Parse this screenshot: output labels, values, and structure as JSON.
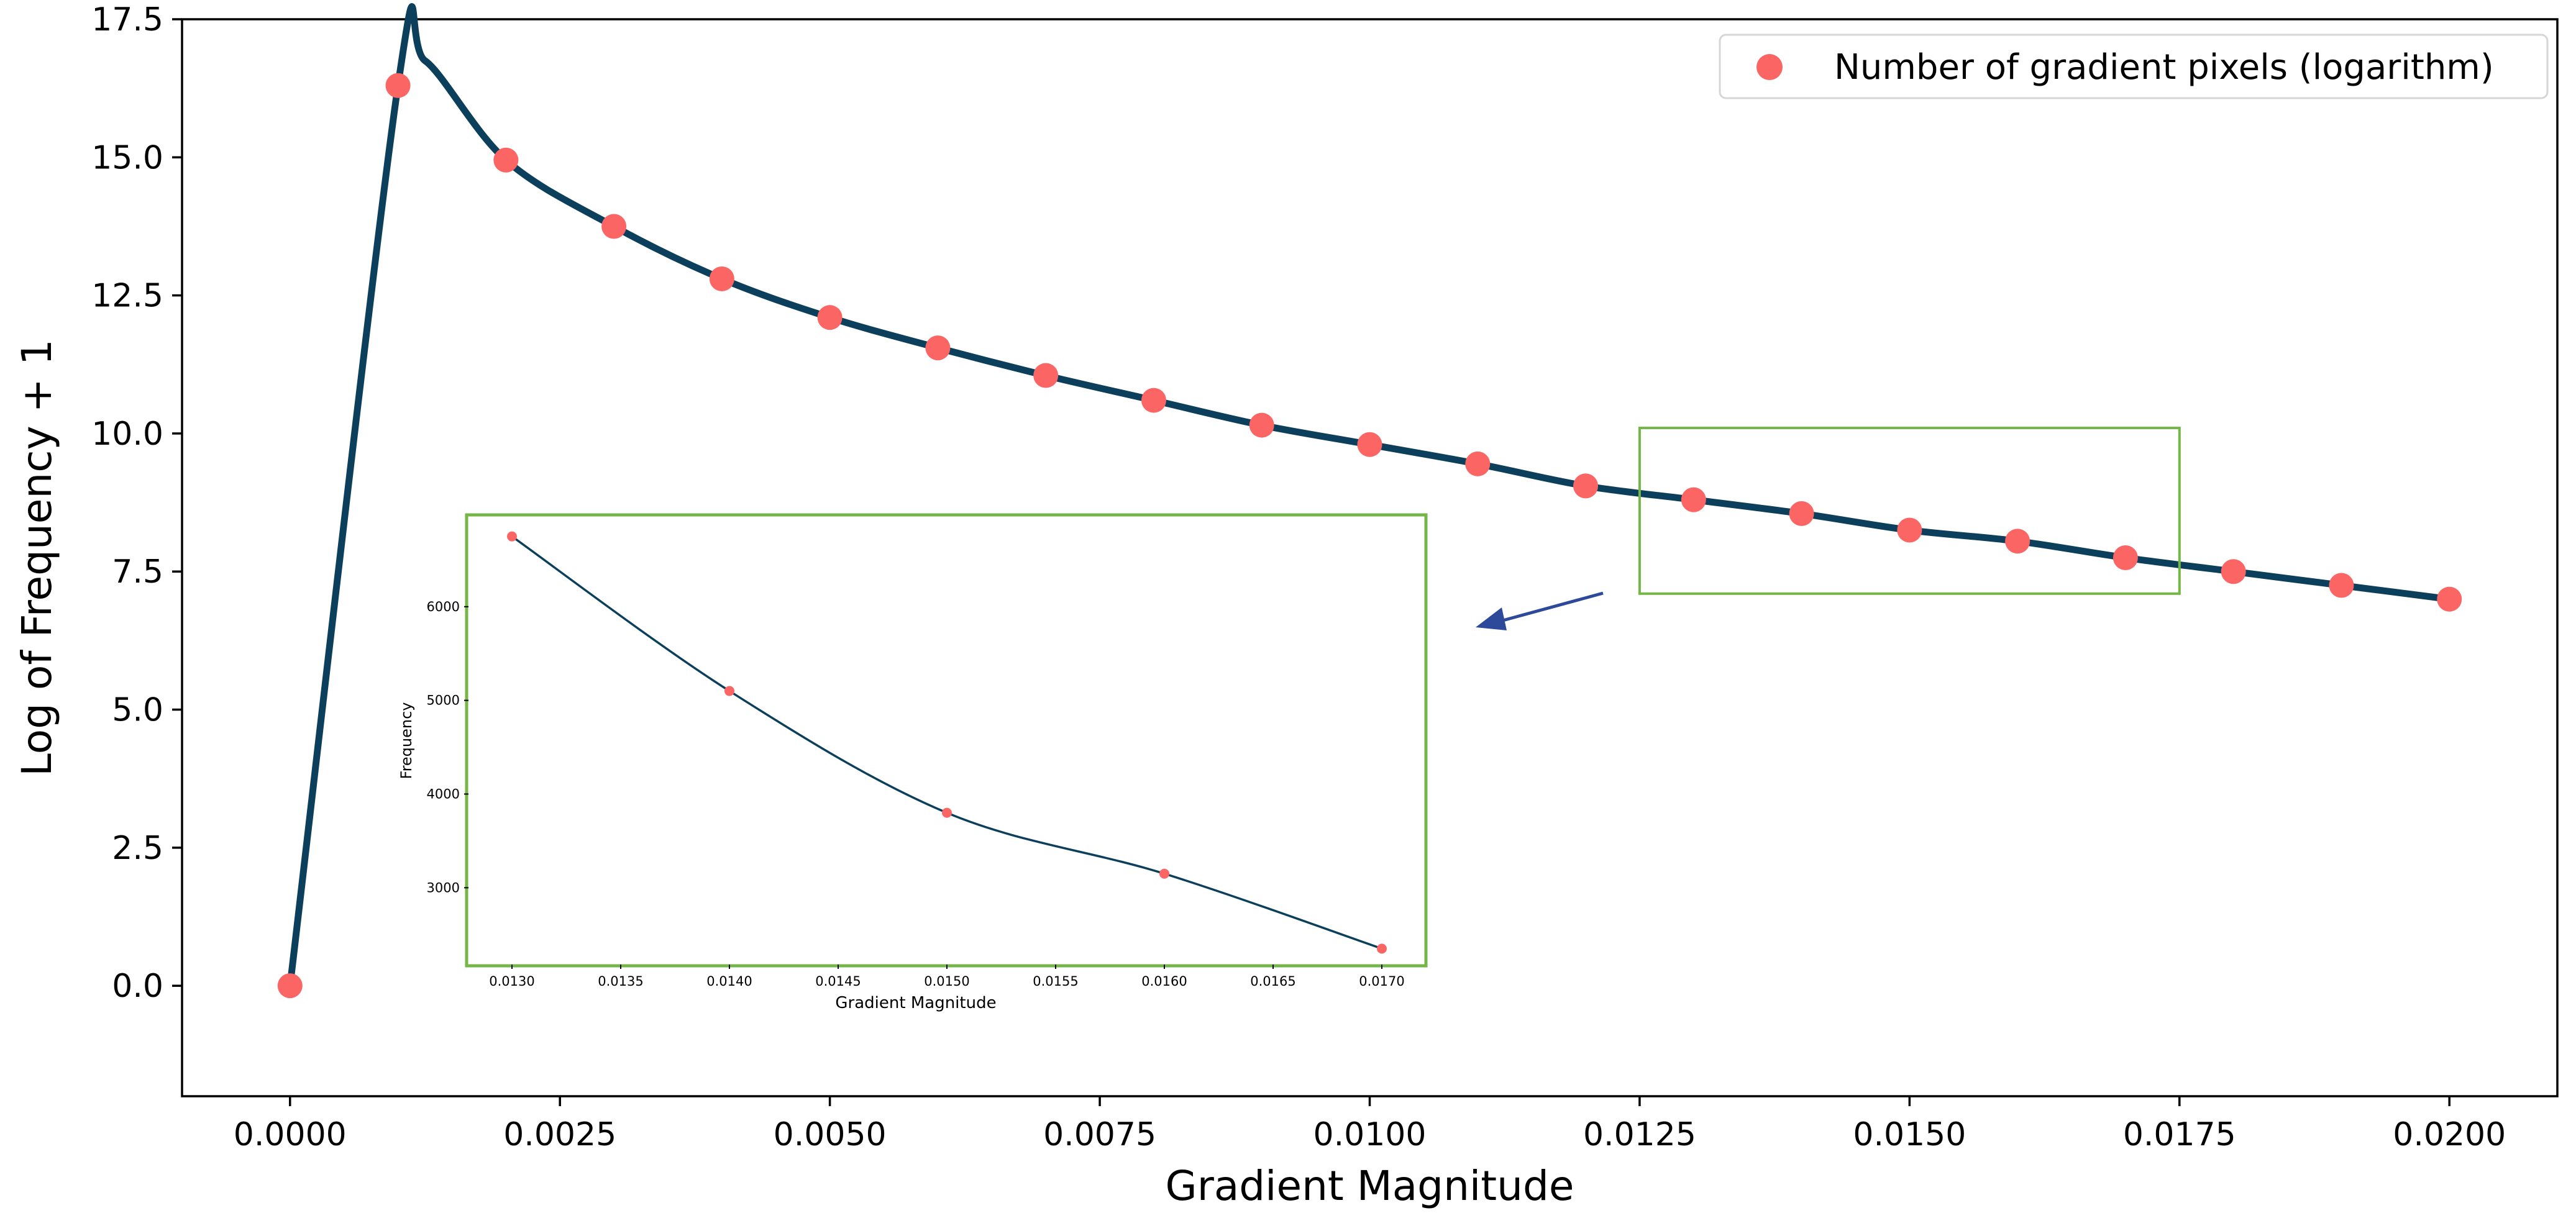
{
  "colors": {
    "line": "#0b3f5c",
    "marker": "#fb6664",
    "zoom_box": "#74b648",
    "arrow": "#2d4a9a",
    "axis": "#000000"
  },
  "chart_data": [
    {
      "type": "line",
      "role": "main",
      "xlabel": "Gradient Magnitude",
      "ylabel": "Log of Frequency + 1",
      "xlim": [
        -0.001,
        0.021
      ],
      "ylim": [
        -2.0,
        17.5
      ],
      "x_ticks": [
        0.0,
        0.0025,
        0.005,
        0.0075,
        0.01,
        0.0125,
        0.015,
        0.0175,
        0.02
      ],
      "x_tick_labels": [
        "0.0000",
        "0.0025",
        "0.0050",
        "0.0075",
        "0.0100",
        "0.0125",
        "0.0150",
        "0.0175",
        "0.0200"
      ],
      "y_ticks": [
        0.0,
        2.5,
        5.0,
        7.5,
        10.0,
        12.5,
        15.0,
        17.5
      ],
      "y_tick_labels": [
        "0.0",
        "2.5",
        "5.0",
        "7.5",
        "10.0",
        "12.5",
        "15.0",
        "17.5"
      ],
      "grid": false,
      "legend_position": "top-right",
      "series": [
        {
          "name": "Number of gradient pixels (logarithm)",
          "x": [
            0.0,
            0.001,
            0.002,
            0.003,
            0.004,
            0.005,
            0.006,
            0.007,
            0.008,
            0.009,
            0.01,
            0.011,
            0.012,
            0.013,
            0.014,
            0.015,
            0.016,
            0.017,
            0.018,
            0.019,
            0.02
          ],
          "y": [
            0.0,
            16.3,
            14.95,
            13.75,
            12.8,
            12.1,
            11.55,
            11.05,
            10.6,
            10.15,
            9.8,
            9.45,
            9.05,
            8.8,
            8.55,
            8.25,
            8.05,
            7.75,
            7.5,
            7.25,
            7.0
          ]
        }
      ],
      "curve_peak": {
        "x": 0.00125,
        "y": 16.75
      },
      "zoom_region": {
        "x": [
          0.0125,
          0.0175
        ],
        "y": [
          7.1,
          10.1
        ]
      }
    },
    {
      "type": "line",
      "role": "inset",
      "xlabel": "Gradient Magnitude",
      "ylabel": "Frequency",
      "xlim": [
        0.0128,
        0.0172
      ],
      "ylim": [
        2180,
        6960
      ],
      "x_ticks": [
        0.013,
        0.0135,
        0.014,
        0.0145,
        0.015,
        0.0155,
        0.016,
        0.0165,
        0.017
      ],
      "x_tick_labels": [
        "0.0130",
        "0.0135",
        "0.0140",
        "0.0145",
        "0.0150",
        "0.0155",
        "0.0160",
        "0.0165",
        "0.0170"
      ],
      "y_ticks": [
        3000,
        4000,
        5000,
        6000
      ],
      "y_tick_labels": [
        "3000",
        "4000",
        "5000",
        "6000"
      ],
      "series": [
        {
          "x": [
            0.013,
            0.014,
            0.015,
            0.016,
            0.017
          ],
          "y": [
            6750,
            5100,
            3800,
            3150,
            2350
          ]
        }
      ]
    }
  ]
}
